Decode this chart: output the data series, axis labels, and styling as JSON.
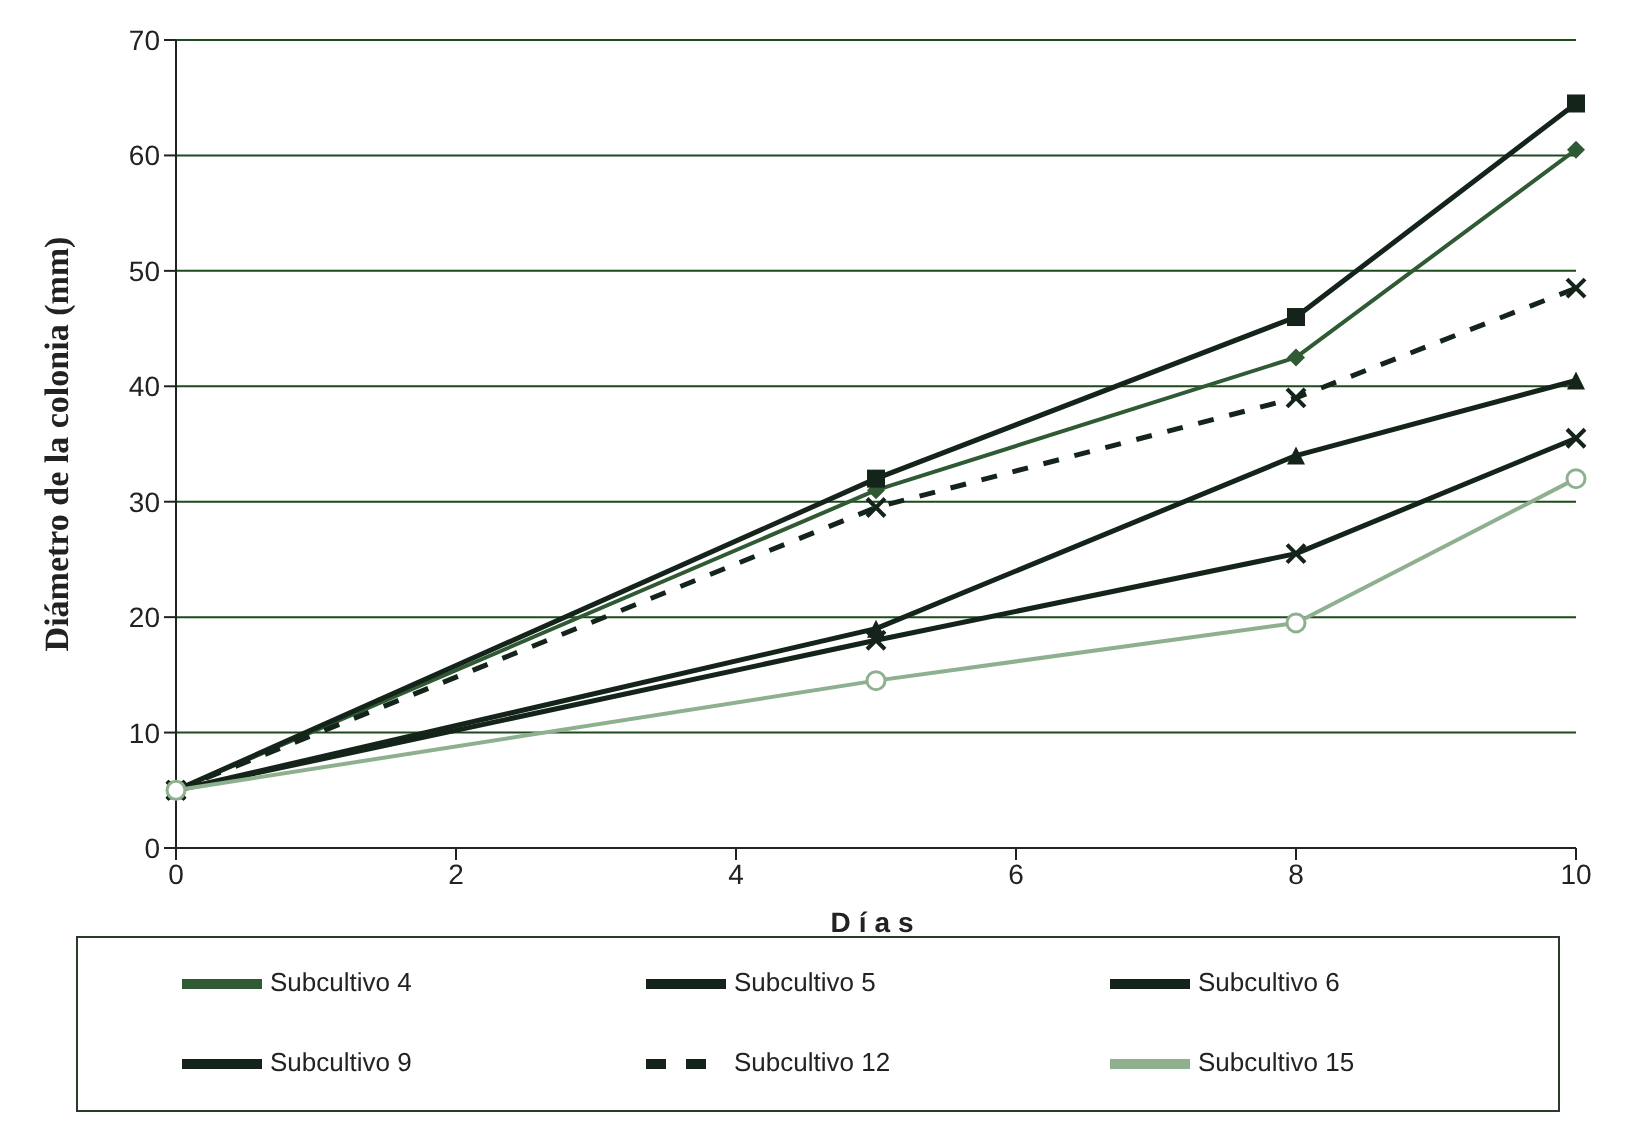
{
  "chart_data": {
    "type": "line",
    "xlabel": "Días",
    "ylabel": "Diámetro de la colonia (mm)",
    "x": [
      0,
      5,
      8,
      10
    ],
    "series": [
      {
        "name": "Subcultivo 4",
        "color": "#2f5a34",
        "marker": "diamond",
        "values": [
          5,
          31,
          42.5,
          60.5
        ]
      },
      {
        "name": "Subcultivo 5",
        "color": "#14241a",
        "marker": "square",
        "values": [
          5,
          32,
          46,
          64.5
        ]
      },
      {
        "name": "Subcultivo 6",
        "color": "#14241a",
        "marker": "triangle",
        "values": [
          5,
          19,
          34,
          40.5
        ]
      },
      {
        "name": "Subcultivo 9",
        "color": "#14241a",
        "marker": "cross",
        "values": [
          5,
          18,
          25.5,
          35.5
        ]
      },
      {
        "name": "Subcultivo 12",
        "color": "#14241a",
        "marker": "cross",
        "line_style": "dashed",
        "values": [
          5,
          29.5,
          39,
          48.5
        ]
      },
      {
        "name": "Subcultivo 15",
        "color": "#8fb08f",
        "marker": "circle",
        "values": [
          5,
          14.5,
          19.5,
          32
        ]
      }
    ],
    "xlim": [
      0,
      10
    ],
    "xticks": [
      0,
      2,
      4,
      6,
      8,
      10
    ],
    "ylim": [
      0,
      70
    ],
    "yticks": [
      0,
      10,
      20,
      30,
      40,
      50,
      60,
      70
    ],
    "grid": "y",
    "legend": "bottom"
  }
}
